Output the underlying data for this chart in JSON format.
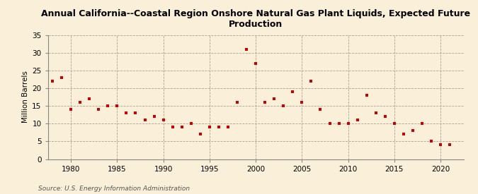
{
  "title": "Annual California--Coastal Region Onshore Natural Gas Plant Liquids, Expected Future\nProduction",
  "ylabel": "Million Barrels",
  "source": "Source: U.S. Energy Information Administration",
  "background_color": "#faefd8",
  "plot_background_color": "#faefd8",
  "marker_color": "#cc0000",
  "xlim": [
    1977.5,
    2022.5
  ],
  "ylim": [
    0,
    35
  ],
  "yticks": [
    0,
    5,
    10,
    15,
    20,
    25,
    30,
    35
  ],
  "xticks": [
    1980,
    1985,
    1990,
    1995,
    2000,
    2005,
    2010,
    2015,
    2020
  ],
  "years": [
    1978,
    1979,
    1980,
    1981,
    1982,
    1983,
    1984,
    1985,
    1986,
    1987,
    1988,
    1989,
    1990,
    1991,
    1992,
    1993,
    1994,
    1995,
    1996,
    1997,
    1998,
    1999,
    2000,
    2001,
    2002,
    2003,
    2004,
    2005,
    2006,
    2007,
    2008,
    2009,
    2010,
    2011,
    2012,
    2013,
    2014,
    2015,
    2016,
    2017,
    2018,
    2019,
    2020,
    2021
  ],
  "values": [
    22,
    23,
    14,
    16,
    17,
    14,
    15,
    15,
    13,
    13,
    11,
    12,
    11,
    9,
    9,
    10,
    7,
    9,
    9,
    9,
    16,
    31,
    27,
    16,
    17,
    15,
    19,
    16,
    22,
    14,
    10,
    10,
    10,
    11,
    18,
    13,
    12,
    10,
    7,
    8,
    10,
    5,
    4,
    4
  ]
}
